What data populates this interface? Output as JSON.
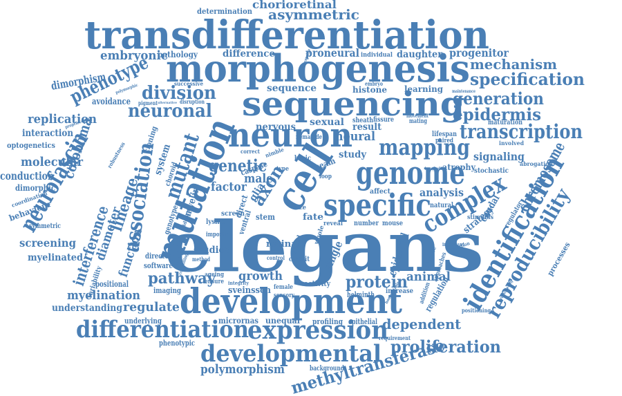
{
  "theme": {
    "word_color": "#4a7fb5",
    "background": "#ffffff"
  },
  "words": {
    "elegans": "elegans",
    "development": "development",
    "transdifferentiation": "transdifferentiation",
    "morphogenesis": "morphogenesis",
    "sequencing": "sequencing",
    "neuron": "neuron",
    "mutation": "mutation",
    "cell": "cell",
    "genome": "genome",
    "mapping": "mapping",
    "specific": "specific",
    "complex": "complex",
    "identification": "identification",
    "reproducibility": "reproducibility",
    "transcription": "transcription",
    "neurofascin": "neurofascin",
    "association": "association",
    "differentiation": "differentiation",
    "expression": "expression",
    "developmental": "developmental",
    "methyltransferase": "methyltransferase",
    "proliferation": "proliferation",
    "polymorphism": "polymorphism",
    "phenotype": "phenotype",
    "neuronal": "neuronal",
    "division": "division",
    "specification": "specification",
    "generation": "generation",
    "epidermis": "epidermis",
    "mechanism": "mechanism",
    "asymmetric": "asymmetric",
    "chorioretinal": "chorioretinal",
    "determination": "determination",
    "embryonic": "embryonic",
    "dimorphism": "dimorphism",
    "replication": "replication",
    "coloboma": "coloboma",
    "interaction": "interaction",
    "optogenetics": "optogenetics",
    "molecular": "molecular",
    "conduction": "conduction",
    "dimorphic": "dimorphic",
    "behaviour": "behaviour",
    "interference": "interference",
    "diameter": "diameter",
    "function": "function",
    "screening": "screening",
    "myelinated": "myelinated",
    "myelination": "myelination",
    "regulate": "regulate",
    "understanding": "understanding",
    "pathway": "pathway",
    "protein": "protein",
    "animal": "animal",
    "growth": "growth",
    "sveinsson": "sveinsson",
    "dependent": "dependent",
    "lineage": "lineage",
    "mutant": "mutant",
    "genetic": "genetic",
    "factor": "factor",
    "male": "male",
    "axon": "axon",
    "nervous": "nervous",
    "sexual": "sexual",
    "neural": "neural",
    "study": "study",
    "result": "result",
    "signaling": "signaling",
    "chromosome": "chromosome",
    "analysis": "analysis",
    "caudal": "caudal",
    "strategy": "strategy",
    "regulation": "regulation",
    "epidermal": "epidermal",
    "single": "single",
    "fate": "fate",
    "stem": "stem",
    "myelin": "myelin",
    "studies": "studies",
    "retinal": "retinal",
    "activity": "activity",
    "micrornas": "micrornas",
    "unequal": "unequal",
    "profiling": "profiling",
    "epithelial": "epithelial",
    "proneural": "proneural",
    "progenitor": "progenitor",
    "daughter": "daughter",
    "individual": "individual",
    "difference": "difference",
    "pathology": "pathology",
    "histone": "histone",
    "learning": "learning",
    "maturation": "maturation",
    "sequence": "sequence",
    "atrophy": "atrophy",
    "stochastic": "stochastic",
    "abrogation": "abrogation",
    "involved": "involved",
    "natural": "natural",
    "regulator": "regulator",
    "stimulus": "stimulus",
    "processes": "processes",
    "lifespan": "lifespan",
    "paired": "paired",
    "fissure": "fissure",
    "sheath": "sheath",
    "seam": "seam",
    "glia": "glia",
    "caspase": "caspase",
    "screen": "screen",
    "direct": "direct",
    "size": "size",
    "reveal": "reveal",
    "number": "number",
    "mouse": "mouse",
    "affect": "affect",
    "loop": "loop",
    "circuit": "circuit",
    "whole": "whole",
    "speed": "speed",
    "helminth": "helminth",
    "increase": "increase",
    "female": "female",
    "sensory": "sensory",
    "ageing": "ageing",
    "ensure": "ensure",
    "imaging": "imaging",
    "software": "software",
    "directed": "directed",
    "method": "method",
    "control": "control",
    "lysine": "lysine",
    "importin": "importin",
    "ventral": "ventral",
    "positional": "positional",
    "variability": "variability",
    "symmetric": "symmetric",
    "coordination": "coordination",
    "genotype": "genotype",
    "system": "system",
    "choroid": "choroid",
    "cloning": "cloning",
    "robustness": "robustness",
    "avoidance": "avoidance",
    "pigment": "pigment",
    "embryo": "embryo",
    "mating": "mating",
    "movement": "movement",
    "nematode": "nematode",
    "basic": "basic",
    "type": "type",
    "correct": "correct",
    "nimble": "nimble",
    "underlying": "underlying",
    "phenotypic": "phenotypic",
    "background": "background",
    "requirement": "requirement",
    "positioning": "positioning",
    "addition": "addition",
    "guidance": "guidance",
    "approaches": "approaches",
    "variation": "variation",
    "homeostasis": "homeostasis",
    "remodeling": "remodeling",
    "successive": "successive",
    "polymorphic": "polymorphic",
    "proprioceptor": "proprioceptor",
    "disruption": "disruption",
    "alternative": "alternative",
    "important": "important",
    "maintenance": "maintenance",
    "integrity": "integrity",
    "controlling": "controlling",
    "identity": "identity",
    "determine": "determine",
    "hermaphrodite": "hermaphrodite"
  }
}
